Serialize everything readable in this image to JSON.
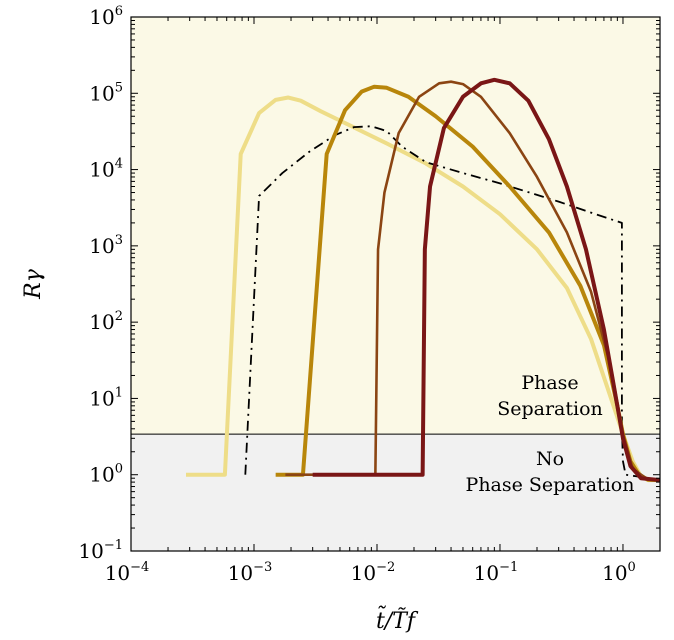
{
  "chart_data": {
    "type": "line",
    "xscale": "log",
    "yscale": "log",
    "xlim": [
      0.0001,
      2
    ],
    "ylim": [
      0.1,
      1000000
    ],
    "xlabel": "t̃/T̃f",
    "ylabel": "Rγ",
    "x_ticks": [
      {
        "value": 0.0001,
        "base": "10",
        "exp": "−4"
      },
      {
        "value": 0.001,
        "base": "10",
        "exp": "−3"
      },
      {
        "value": 0.01,
        "base": "10",
        "exp": "−2"
      },
      {
        "value": 0.1,
        "base": "10",
        "exp": "−1"
      },
      {
        "value": 1,
        "base": "10",
        "exp": "0"
      }
    ],
    "y_ticks": [
      {
        "value": 0.1,
        "base": "10",
        "exp": "−1"
      },
      {
        "value": 1,
        "base": "10",
        "exp": "0"
      },
      {
        "value": 10,
        "base": "10",
        "exp": "1"
      },
      {
        "value": 100,
        "base": "10",
        "exp": "2"
      },
      {
        "value": 1000,
        "base": "10",
        "exp": "3"
      },
      {
        "value": 10000,
        "base": "10",
        "exp": "4"
      },
      {
        "value": 100000,
        "base": "10",
        "exp": "5"
      },
      {
        "value": 1000000,
        "base": "10",
        "exp": "6"
      }
    ],
    "threshold": 3.4,
    "regions": {
      "upper_label": [
        "Phase",
        "Separation"
      ],
      "lower_label": [
        "No",
        "Phase Separation"
      ],
      "upper_color": "#fbf9e6",
      "lower_color": "#f1f1f1"
    },
    "series": [
      {
        "color": "#eedd88",
        "width": 4,
        "dash": "",
        "points": [
          [
            0.00028,
            1
          ],
          [
            0.00058,
            1
          ],
          [
            0.00078,
            16000
          ],
          [
            0.0011,
            55000
          ],
          [
            0.0015,
            82000
          ],
          [
            0.0019,
            88000
          ],
          [
            0.0024,
            80000
          ],
          [
            0.0035,
            58000
          ],
          [
            0.006,
            38000
          ],
          [
            0.012,
            22000
          ],
          [
            0.025,
            12000
          ],
          [
            0.05,
            6000
          ],
          [
            0.1,
            2600
          ],
          [
            0.2,
            900
          ],
          [
            0.35,
            280
          ],
          [
            0.55,
            60
          ],
          [
            0.8,
            10
          ],
          [
            1.0,
            3.4
          ],
          [
            1.2,
            1.5
          ],
          [
            1.4,
            0.95
          ],
          [
            1.6,
            0.85
          ],
          [
            2.0,
            0.85
          ]
        ]
      },
      {
        "color": "#000000",
        "width": 1.8,
        "dash": "10,5,2,5",
        "points": [
          [
            0.00085,
            1
          ],
          [
            0.0011,
            4500
          ],
          [
            0.0017,
            9000
          ],
          [
            0.0028,
            17000
          ],
          [
            0.0045,
            28000
          ],
          [
            0.0065,
            36000
          ],
          [
            0.009,
            37000
          ],
          [
            0.012,
            32000
          ],
          [
            0.016,
            20000
          ],
          [
            0.025,
            12500
          ],
          [
            0.05,
            9000
          ],
          [
            0.1,
            6600
          ],
          [
            0.3,
            3800
          ],
          [
            0.6,
            2600
          ],
          [
            0.98,
            2000
          ],
          [
            0.98,
            4
          ],
          [
            1.0,
            1.5
          ],
          [
            1.05,
            1.0
          ],
          [
            1.3,
            0.95
          ],
          [
            1.6,
            0.88
          ],
          [
            2.0,
            0.85
          ]
        ]
      },
      {
        "color": "#b8860b",
        "width": 4,
        "dash": "",
        "points": [
          [
            0.0015,
            1
          ],
          [
            0.0025,
            1
          ],
          [
            0.0039,
            16000
          ],
          [
            0.0055,
            60000
          ],
          [
            0.0075,
            105000
          ],
          [
            0.0095,
            122000
          ],
          [
            0.012,
            118000
          ],
          [
            0.018,
            90000
          ],
          [
            0.03,
            50000
          ],
          [
            0.06,
            20000
          ],
          [
            0.12,
            6000
          ],
          [
            0.25,
            1500
          ],
          [
            0.45,
            300
          ],
          [
            0.7,
            50
          ],
          [
            0.9,
            8
          ],
          [
            1.0,
            3.4
          ],
          [
            1.15,
            1.5
          ],
          [
            1.35,
            1.0
          ],
          [
            1.6,
            0.86
          ],
          [
            2.0,
            0.85
          ]
        ]
      },
      {
        "color": "#8b4513",
        "width": 2.6,
        "dash": "",
        "points": [
          [
            0.0018,
            1
          ],
          [
            0.0097,
            1
          ],
          [
            0.0102,
            900
          ],
          [
            0.0115,
            5000
          ],
          [
            0.015,
            30000
          ],
          [
            0.022,
            90000
          ],
          [
            0.032,
            135000
          ],
          [
            0.04,
            142000
          ],
          [
            0.05,
            132000
          ],
          [
            0.07,
            90000
          ],
          [
            0.12,
            30000
          ],
          [
            0.2,
            8000
          ],
          [
            0.35,
            1500
          ],
          [
            0.55,
            250
          ],
          [
            0.8,
            25
          ],
          [
            1.0,
            3.4
          ],
          [
            1.2,
            1.2
          ],
          [
            1.6,
            0.86
          ],
          [
            2.0,
            0.85
          ]
        ]
      },
      {
        "color": "#7a1616",
        "width": 4,
        "dash": "",
        "points": [
          [
            0.003,
            1
          ],
          [
            0.0235,
            1
          ],
          [
            0.0245,
            900
          ],
          [
            0.027,
            6000
          ],
          [
            0.035,
            35000
          ],
          [
            0.05,
            90000
          ],
          [
            0.07,
            135000
          ],
          [
            0.09,
            150000
          ],
          [
            0.12,
            135000
          ],
          [
            0.17,
            80000
          ],
          [
            0.25,
            25000
          ],
          [
            0.35,
            6000
          ],
          [
            0.5,
            900
          ],
          [
            0.7,
            80
          ],
          [
            0.9,
            8
          ],
          [
            1.0,
            3.0
          ],
          [
            1.15,
            1.3
          ],
          [
            1.4,
            0.9
          ],
          [
            2.0,
            0.85
          ]
        ]
      }
    ]
  }
}
